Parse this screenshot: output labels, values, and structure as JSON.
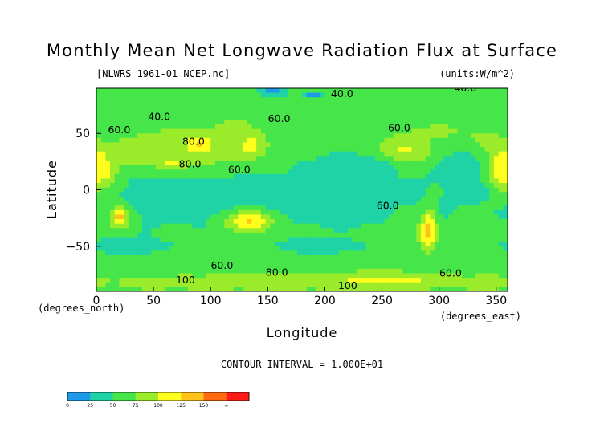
{
  "chart_data": {
    "type": "heatmap",
    "title": "Monthly Mean Net Longwave Radiation Flux at Surface",
    "source_file": "[NLWRS_1961-01_NCEP.nc]",
    "units": "(units:W/m^2)",
    "xlabel": "Longitude",
    "ylabel": "Latitude",
    "x_unit_label": "(degrees_east)",
    "y_unit_label": "(degrees_north)",
    "xlim": [
      0,
      360
    ],
    "ylim": [
      -90,
      90
    ],
    "x_ticks": [
      0,
      50,
      100,
      150,
      200,
      250,
      300,
      350
    ],
    "x_tick_labels": [
      "0",
      "50",
      "100",
      "150",
      "200",
      "250",
      "300",
      "350"
    ],
    "y_ticks": [
      50,
      0,
      -50
    ],
    "y_tick_labels": [
      "50",
      "0",
      "−50"
    ],
    "contour_interval_text": "CONTOUR INTERVAL = 1.000E+01",
    "colorbar": {
      "levels": [
        0,
        25,
        50,
        75,
        100,
        125,
        150
      ],
      "tick_labels": [
        "0",
        "25",
        "50",
        "75",
        "100",
        "125",
        "150",
        "∞"
      ],
      "colors": [
        "#1e9be8",
        "#1fd3a6",
        "#46e64a",
        "#9aec2a",
        "#ffff1e",
        "#ffc21a",
        "#ff6a0f",
        "#ff1a1a"
      ]
    },
    "contour_labels": [
      {
        "text": "40.0",
        "x": 55,
        "y": 62
      },
      {
        "text": "60.0",
        "x": 20,
        "y": 50
      },
      {
        "text": "80.0",
        "x": 85,
        "y": 40
      },
      {
        "text": "60.0",
        "x": 125,
        "y": 15
      },
      {
        "text": "80.0",
        "x": 82,
        "y": 20
      },
      {
        "text": "40.0",
        "x": 215,
        "y": 82
      },
      {
        "text": "60.0",
        "x": 160,
        "y": 60
      },
      {
        "text": "60.0",
        "x": 265,
        "y": 52
      },
      {
        "text": "40.0",
        "x": 323,
        "y": 87
      },
      {
        "text": "60.0",
        "x": 255,
        "y": -17
      },
      {
        "text": "60.0",
        "x": 110,
        "y": -70
      },
      {
        "text": "80.0",
        "x": 158,
        "y": -76
      },
      {
        "text": "100",
        "x": 78,
        "y": -83
      },
      {
        "text": "100",
        "x": 220,
        "y": -88
      },
      {
        "text": "60.0",
        "x": 310,
        "y": -77
      }
    ],
    "field_blobs": [
      {
        "lon": 0,
        "lat": 70,
        "rlon": 180,
        "rlat": 22,
        "value": 55
      },
      {
        "lon": 180,
        "lat": 75,
        "rlon": 200,
        "rlat": 15,
        "value": 55
      },
      {
        "lon": 0,
        "lat": -68,
        "rlon": 200,
        "rlat": 14,
        "value": 65
      },
      {
        "lon": 180,
        "lat": -66,
        "rlon": 200,
        "rlat": 12,
        "value": 60
      },
      {
        "lon": 85,
        "lat": 38,
        "rlon": 60,
        "rlat": 20,
        "value": 95
      },
      {
        "lon": 50,
        "lat": 35,
        "rlon": 45,
        "rlat": 12,
        "value": 90
      },
      {
        "lon": 90,
        "lat": 40,
        "rlon": 10,
        "rlat": 6,
        "value": 130
      },
      {
        "lon": 65,
        "lat": 24,
        "rlon": 15,
        "rlat": 6,
        "value": 105
      },
      {
        "lon": 5,
        "lat": 18,
        "rlon": 14,
        "rlat": 14,
        "value": 120
      },
      {
        "lon": 10,
        "lat": 30,
        "rlon": 25,
        "rlat": 10,
        "value": 95
      },
      {
        "lon": 135,
        "lat": 40,
        "rlon": 14,
        "rlat": 12,
        "value": 110
      },
      {
        "lon": 122,
        "lat": 55,
        "rlon": 14,
        "rlat": 10,
        "value": 90
      },
      {
        "lon": 270,
        "lat": 35,
        "rlon": 25,
        "rlat": 16,
        "value": 105
      },
      {
        "lon": 300,
        "lat": 52,
        "rlon": 30,
        "rlat": 10,
        "value": 80
      },
      {
        "lon": 355,
        "lat": 18,
        "rlon": 14,
        "rlat": 22,
        "value": 120
      },
      {
        "lon": 340,
        "lat": 45,
        "rlon": 15,
        "rlat": 10,
        "value": 85
      },
      {
        "lon": 300,
        "lat": 80,
        "rlon": 40,
        "rlat": 8,
        "value": 75
      },
      {
        "lon": 20,
        "lat": -25,
        "rlon": 9,
        "rlat": 10,
        "value": 135
      },
      {
        "lon": 133,
        "lat": -27,
        "rlon": 22,
        "rlat": 11,
        "value": 130
      },
      {
        "lon": 290,
        "lat": -35,
        "rlon": 8,
        "rlat": 18,
        "value": 140
      },
      {
        "lon": 270,
        "lat": -25,
        "rlon": 16,
        "rlat": 10,
        "value": 70
      },
      {
        "lon": 250,
        "lat": -80,
        "rlon": 70,
        "rlat": 8,
        "value": 110
      },
      {
        "lon": 150,
        "lat": -80,
        "rlon": 50,
        "rlat": 8,
        "value": 100
      },
      {
        "lon": 70,
        "lat": -82,
        "rlon": 50,
        "rlat": 6,
        "value": 95
      },
      {
        "lon": 345,
        "lat": -82,
        "rlon": 20,
        "rlat": 6,
        "value": 95
      },
      {
        "lon": 160,
        "lat": -5,
        "rlon": 70,
        "rlat": 12,
        "value": 25
      },
      {
        "lon": 75,
        "lat": -12,
        "rlon": 35,
        "rlat": 16,
        "value": 25
      },
      {
        "lon": 215,
        "lat": -15,
        "rlon": 45,
        "rlat": 14,
        "value": 25
      },
      {
        "lon": 230,
        "lat": 20,
        "rlon": 35,
        "rlat": 10,
        "value": 25
      },
      {
        "lon": 30,
        "lat": -50,
        "rlon": 35,
        "rlat": 8,
        "value": 25
      },
      {
        "lon": 195,
        "lat": -50,
        "rlon": 40,
        "rlat": 7,
        "value": 25
      },
      {
        "lon": 155,
        "lat": 87,
        "rlon": 12,
        "rlat": 4,
        "value": 10
      },
      {
        "lon": 190,
        "lat": 84,
        "rlon": 10,
        "rlat": 3,
        "value": 15
      },
      {
        "lon": 320,
        "lat": 20,
        "rlon": 20,
        "rlat": 12,
        "value": 30
      },
      {
        "lon": 330,
        "lat": 0,
        "rlon": 18,
        "rlat": 8,
        "value": 35
      }
    ]
  }
}
